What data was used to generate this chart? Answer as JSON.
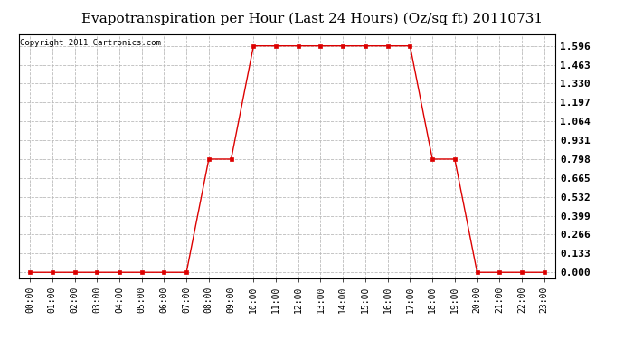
{
  "title": "Evapotranspiration per Hour (Last 24 Hours) (Oz/sq ft) 20110731",
  "copyright_text": "Copyright 2011 Cartronics.com",
  "hours": [
    0,
    1,
    2,
    3,
    4,
    5,
    6,
    7,
    8,
    9,
    10,
    11,
    12,
    13,
    14,
    15,
    16,
    17,
    18,
    19,
    20,
    21,
    22,
    23
  ],
  "values": [
    0.0,
    0.0,
    0.0,
    0.0,
    0.0,
    0.0,
    0.0,
    0.0,
    0.798,
    0.798,
    1.596,
    1.596,
    1.596,
    1.596,
    1.596,
    1.596,
    1.596,
    1.596,
    0.798,
    0.798,
    0.0,
    0.0,
    0.0,
    0.0
  ],
  "line_color": "#dd0000",
  "marker": "s",
  "marker_size": 3,
  "bg_color": "#ffffff",
  "plot_bg_color": "#ffffff",
  "grid_color": "#bbbbbb",
  "title_fontsize": 11,
  "yticks": [
    0.0,
    0.133,
    0.266,
    0.399,
    0.532,
    0.665,
    0.798,
    0.931,
    1.064,
    1.197,
    1.33,
    1.463,
    1.596
  ],
  "ylim": [
    -0.04,
    1.68
  ],
  "xlim": [
    -0.5,
    23.5
  ],
  "xlabel_fontsize": 7,
  "right_ytick_fontsize": 8,
  "copyright_fontsize": 6.5
}
